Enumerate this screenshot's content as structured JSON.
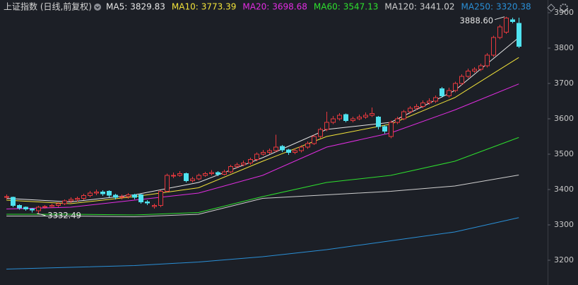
{
  "chart_data": {
    "type": "candlestick",
    "title": "上证指数 (日线,前复权)",
    "up_color": "#e8383d",
    "down_color": "#4fe3f0",
    "xlim": [
      0,
      85.5
    ],
    "ylim": [
      3130,
      3936
    ],
    "yticks": [
      3200,
      3300,
      3400,
      3500,
      3600,
      3700,
      3800,
      3900
    ],
    "x": [
      1,
      2,
      3,
      4,
      5,
      6,
      7,
      8,
      9,
      10,
      11,
      12,
      13,
      14,
      15,
      16,
      17,
      18,
      19,
      20,
      21,
      22,
      23,
      24,
      25,
      26,
      27,
      28,
      29,
      30,
      31,
      32,
      33,
      34,
      35,
      36,
      37,
      38,
      39,
      40,
      41,
      42,
      43,
      44,
      45,
      46,
      47,
      48,
      49,
      50,
      51,
      52,
      53,
      54,
      55,
      56,
      57,
      58,
      59,
      60,
      61,
      62,
      63,
      64,
      65,
      66,
      67,
      68,
      69,
      70,
      71,
      72,
      73,
      74,
      75,
      76,
      77,
      78,
      79,
      80,
      81
    ],
    "open": [
      3378,
      3378,
      3355,
      3350,
      3345,
      3340,
      3350,
      3352,
      3355,
      3360,
      3368,
      3372,
      3375,
      3383,
      3390,
      3393,
      3395,
      3384,
      3378,
      3380,
      3385,
      3385,
      3365,
      3352,
      3355,
      3395,
      3440,
      3440,
      3445,
      3425,
      3430,
      3440,
      3445,
      3448,
      3443,
      3450,
      3465,
      3470,
      3475,
      3485,
      3500,
      3505,
      3510,
      3522,
      3512,
      3505,
      3510,
      3520,
      3530,
      3550,
      3570,
      3590,
      3600,
      3612,
      3595,
      3600,
      3605,
      3610,
      3605,
      3578,
      3550,
      3590,
      3600,
      3620,
      3630,
      3635,
      3645,
      3650,
      3685,
      3665,
      3680,
      3700,
      3720,
      3735,
      3740,
      3750,
      3780,
      3830,
      3845,
      3880,
      3870
    ],
    "high": [
      3386,
      3380,
      3358,
      3352,
      3348,
      3354,
      3356,
      3360,
      3364,
      3372,
      3378,
      3380,
      3388,
      3396,
      3400,
      3398,
      3398,
      3388,
      3386,
      3390,
      3388,
      3388,
      3370,
      3360,
      3398,
      3445,
      3448,
      3452,
      3448,
      3436,
      3445,
      3450,
      3455,
      3452,
      3456,
      3470,
      3476,
      3482,
      3490,
      3505,
      3512,
      3516,
      3555,
      3526,
      3515,
      3516,
      3525,
      3536,
      3555,
      3575,
      3620,
      3608,
      3616,
      3615,
      3606,
      3612,
      3618,
      3632,
      3608,
      3582,
      3595,
      3606,
      3625,
      3636,
      3642,
      3652,
      3658,
      3666,
      3690,
      3688,
      3705,
      3726,
      3742,
      3746,
      3756,
      3786,
      3835,
      3866,
      3888.6,
      3886,
      3886
    ],
    "low": [
      3372,
      3350,
      3343,
      3340,
      3335,
      3332.49,
      3346,
      3348,
      3350,
      3356,
      3362,
      3366,
      3370,
      3378,
      3384,
      3382,
      3378,
      3372,
      3372,
      3374,
      3372,
      3360,
      3356,
      3346,
      3350,
      3392,
      3432,
      3436,
      3420,
      3420,
      3426,
      3436,
      3440,
      3438,
      3440,
      3446,
      3460,
      3466,
      3470,
      3480,
      3496,
      3500,
      3505,
      3506,
      3498,
      3500,
      3505,
      3515,
      3526,
      3545,
      3565,
      3585,
      3595,
      3590,
      3590,
      3596,
      3600,
      3605,
      3570,
      3558,
      3545,
      3585,
      3596,
      3615,
      3625,
      3630,
      3640,
      3645,
      3660,
      3660,
      3675,
      3695,
      3715,
      3730,
      3735,
      3745,
      3775,
      3825,
      3840,
      3870,
      3800
    ],
    "close": [
      3380,
      3355,
      3348,
      3345,
      3342,
      3350,
      3352,
      3355,
      3360,
      3368,
      3372,
      3375,
      3383,
      3390,
      3393,
      3388,
      3384,
      3378,
      3380,
      3385,
      3378,
      3365,
      3362,
      3355,
      3395,
      3440,
      3440,
      3445,
      3425,
      3430,
      3440,
      3445,
      3448,
      3443,
      3450,
      3465,
      3470,
      3475,
      3485,
      3500,
      3505,
      3510,
      3520,
      3512,
      3505,
      3510,
      3520,
      3530,
      3550,
      3570,
      3590,
      3600,
      3610,
      3595,
      3600,
      3605,
      3610,
      3615,
      3578,
      3565,
      3590,
      3600,
      3620,
      3630,
      3635,
      3645,
      3650,
      3660,
      3665,
      3680,
      3700,
      3720,
      3735,
      3740,
      3750,
      3780,
      3830,
      3860,
      3885,
      3875,
      3805
    ],
    "series": [
      {
        "name": "MA5:",
        "latest": 3829.83,
        "color": "#e6e6e6",
        "x": [
          1,
          11,
          21,
          31,
          41,
          51,
          61,
          71,
          81
        ],
        "values": [
          3375,
          3365,
          3385,
          3420,
          3490,
          3570,
          3590,
          3680,
          3829.83
        ]
      },
      {
        "name": "MA10:",
        "latest": 3773.39,
        "color": "#f2e33a",
        "x": [
          1,
          11,
          21,
          31,
          41,
          51,
          61,
          71,
          81
        ],
        "values": [
          3370,
          3360,
          3380,
          3405,
          3480,
          3550,
          3585,
          3660,
          3773.39
        ]
      },
      {
        "name": "MA20:",
        "latest": 3698.68,
        "color": "#e22de2",
        "x": [
          1,
          11,
          21,
          31,
          41,
          51,
          61,
          71,
          81
        ],
        "values": [
          3345,
          3350,
          3370,
          3390,
          3440,
          3520,
          3560,
          3625,
          3698.68
        ]
      },
      {
        "name": "MA60:",
        "latest": 3547.13,
        "color": "#2ee02e",
        "x": [
          1,
          11,
          21,
          31,
          41,
          51,
          61,
          71,
          81
        ],
        "values": [
          3330,
          3330,
          3328,
          3335,
          3380,
          3420,
          3440,
          3480,
          3547.13
        ]
      },
      {
        "name": "MA120:",
        "latest": 3441.02,
        "color": "#cfcfcf",
        "x": [
          1,
          11,
          21,
          31,
          41,
          51,
          61,
          71,
          81
        ],
        "values": [
          3325,
          3325,
          3323,
          3330,
          3375,
          3385,
          3395,
          3410,
          3441.02
        ]
      },
      {
        "name": "MA250:",
        "latest": 3320.38,
        "color": "#2a8fd6",
        "x": [
          1,
          11,
          21,
          31,
          41,
          51,
          61,
          71,
          81
        ],
        "values": [
          3175,
          3180,
          3185,
          3195,
          3210,
          3230,
          3255,
          3280,
          3320.38
        ]
      }
    ],
    "annotations": [
      {
        "label": "3888.60",
        "x": 79,
        "y": 3888.6
      },
      {
        "label": "3332.49",
        "x": 6,
        "y": 3332.49
      }
    ]
  }
}
